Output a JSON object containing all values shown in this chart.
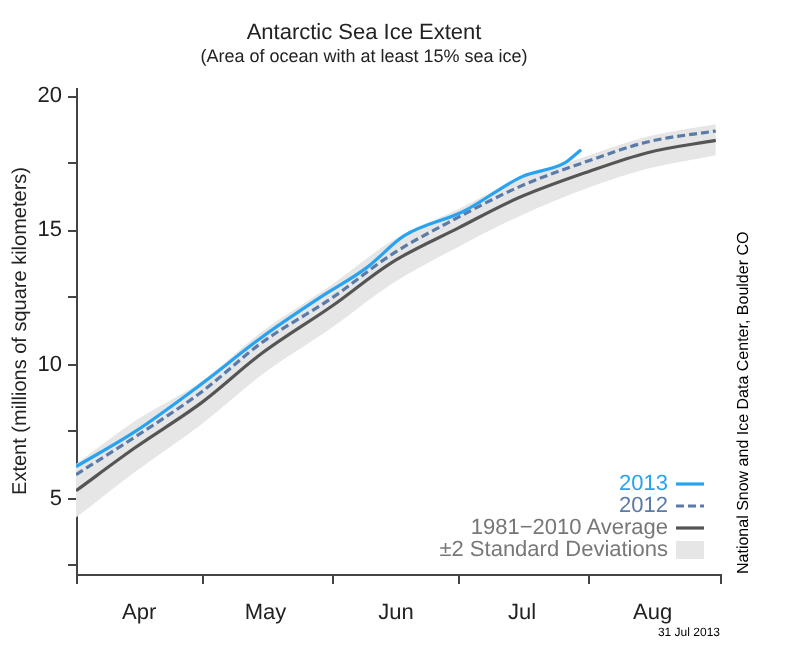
{
  "chart_data": {
    "type": "line",
    "title": "Antarctic Sea Ice Extent",
    "subtitle": "(Area of ocean with at least 15% sea ice)",
    "ylabel": "Extent (millions of square kilometers)",
    "xlim": [
      "--04-01",
      "--09-01"
    ],
    "xticks": [
      {
        "value": "--04-01",
        "label": null
      },
      {
        "value": "--04-16",
        "label": "Apr"
      },
      {
        "value": "--05-01",
        "label": null
      },
      {
        "value": "--05-16",
        "label": "May"
      },
      {
        "value": "--06-01",
        "label": null
      },
      {
        "value": "--06-16",
        "label": "Jun"
      },
      {
        "value": "--07-01",
        "label": null
      },
      {
        "value": "--07-16",
        "label": "Jul"
      },
      {
        "value": "--08-01",
        "label": null
      },
      {
        "value": "--08-16",
        "label": "Aug"
      },
      {
        "value": "--09-01",
        "label": null
      }
    ],
    "ylim": [
      2.2,
      20.3
    ],
    "yticks": [
      {
        "value": 2.5,
        "label": null
      },
      5,
      {
        "value": 7.5,
        "label": null
      },
      10,
      {
        "value": 12.5,
        "label": null
      },
      15,
      {
        "value": 17.5,
        "label": null
      },
      20
    ],
    "grid": false,
    "legend": "bottom right",
    "series": [
      {
        "name": "2013",
        "color": "#29a3f0",
        "line_style": "solid",
        "x": [
          "--04-01",
          "--04-15",
          "--05-01",
          "--05-15",
          "--05-29",
          "--06-09",
          "--06-18",
          "--07-02",
          "--07-16",
          "--07-26",
          "--07-30"
        ],
        "values": [
          6.2,
          7.5,
          9.3,
          11.0,
          12.5,
          13.6,
          14.8,
          15.7,
          17.0,
          17.5,
          18.0
        ]
      },
      {
        "name": "2012",
        "color": "#5a7aa8",
        "line_style": "dashed",
        "x": [
          "--04-01",
          "--04-15",
          "--05-01",
          "--05-15",
          "--06-01",
          "--06-15",
          "--07-01",
          "--07-15",
          "--08-01",
          "--08-15",
          "--08-31"
        ],
        "values": [
          5.9,
          7.3,
          9.0,
          10.8,
          12.5,
          14.1,
          15.5,
          16.6,
          17.6,
          18.3,
          18.7
        ]
      },
      {
        "name": "1981−2010 Average",
        "color": "#555555",
        "line_style": "solid",
        "x": [
          "--04-01",
          "--04-15",
          "--05-01",
          "--05-15",
          "--06-01",
          "--06-15",
          "--07-01",
          "--07-15",
          "--08-01",
          "--08-15",
          "--08-31"
        ],
        "values": [
          5.3,
          6.9,
          8.6,
          10.4,
          12.2,
          13.8,
          15.1,
          16.2,
          17.2,
          17.9,
          18.35
        ],
        "lower": [
          4.3,
          6.0,
          7.8,
          9.6,
          11.4,
          13.0,
          14.4,
          15.5,
          16.6,
          17.3,
          17.8
        ],
        "upper": [
          6.3,
          7.9,
          9.4,
          11.2,
          13.0,
          14.6,
          15.8,
          16.9,
          17.8,
          18.5,
          18.95
        ]
      }
    ],
    "annotations": [
      "±2 Standard Deviations",
      "National Snow and Ice Data Center, Boulder CO",
      "31 Jul 2013"
    ]
  }
}
